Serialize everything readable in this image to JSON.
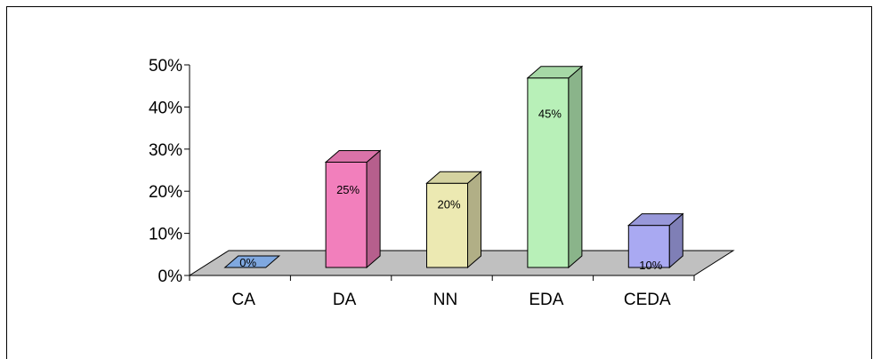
{
  "chart_data": {
    "type": "bar",
    "style": "3d-column",
    "categories": [
      "CA",
      "DA",
      "NN",
      "EDA",
      "CEDA"
    ],
    "values": [
      0,
      25,
      20,
      45,
      10
    ],
    "data_labels": [
      "0%",
      "25%",
      "20%",
      "45%",
      "10%"
    ],
    "yticks": [
      "0%",
      "10%",
      "20%",
      "30%",
      "40%",
      "50%"
    ],
    "ylim": [
      0,
      50
    ],
    "grid": false,
    "legend": "none",
    "colors": {
      "CA": "#7fa8e0",
      "DA": "#f27fbc",
      "NN": "#ece9b2",
      "EDA": "#b8f0b8",
      "CEDA": "#a9a9f2",
      "floor": "#c0c0c0"
    }
  }
}
